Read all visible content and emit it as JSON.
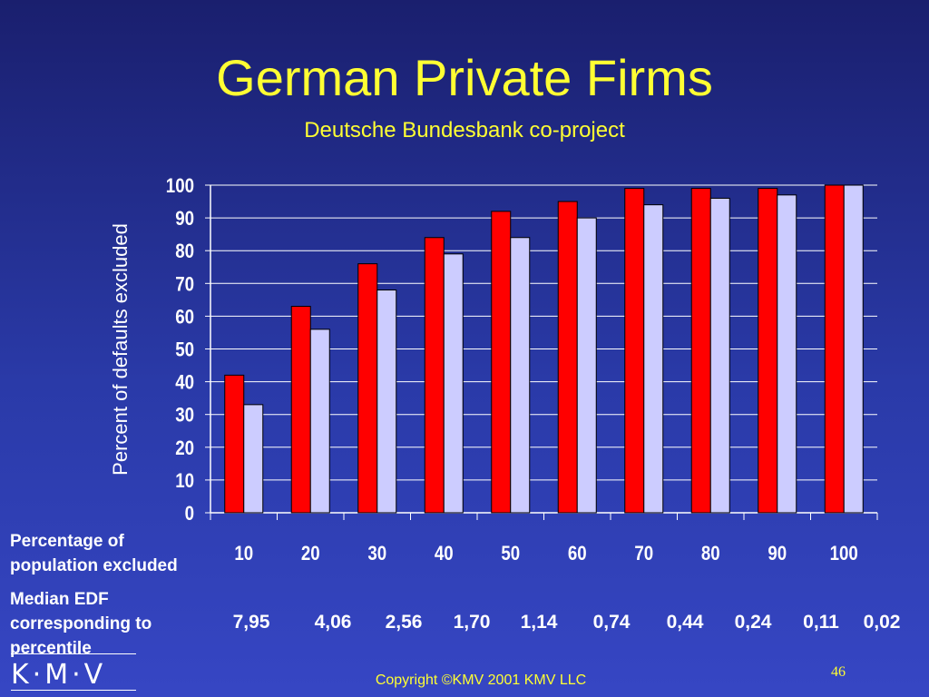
{
  "slide": {
    "title": "German Private Firms",
    "subtitle": "Deutsche Bundesbank co-project",
    "row1_label_a": "Percentage of",
    "row1_label_b": "population excluded",
    "row2_label_a": "Median EDF",
    "row2_label_b": "corresponding to",
    "row2_label_c": "percentile",
    "edf_values": [
      "7,95",
      "4,06",
      "2,56",
      "1,70",
      "1,14",
      "0,74",
      "0,44",
      "0,24",
      "0,11",
      "0,02"
    ],
    "logo_text": "K·M·V",
    "copyright": "Copyright ©KMV 2001 KMV LLC",
    "page_number": "46"
  },
  "colors": {
    "title": "#ffff33",
    "series_red": "#ff0000",
    "series_lavender": "#ccccff",
    "background_top": "#1a1f6e",
    "background_bottom": "#3646c4"
  },
  "chart_data": {
    "type": "bar",
    "title": "",
    "xlabel": "",
    "ylabel": "Percent of defaults excluded",
    "categories": [
      "10",
      "20",
      "30",
      "40",
      "50",
      "60",
      "70",
      "80",
      "90",
      "100"
    ],
    "ylim": [
      0,
      100
    ],
    "yticks": [
      0,
      10,
      20,
      30,
      40,
      50,
      60,
      70,
      80,
      90,
      100
    ],
    "grid": true,
    "series": [
      {
        "values": [
          42,
          63,
          76,
          84,
          92,
          95,
          99,
          99,
          99,
          100
        ]
      },
      {
        "values": [
          33,
          56,
          68,
          79,
          84,
          90,
          94,
          96,
          97,
          100
        ]
      }
    ]
  }
}
